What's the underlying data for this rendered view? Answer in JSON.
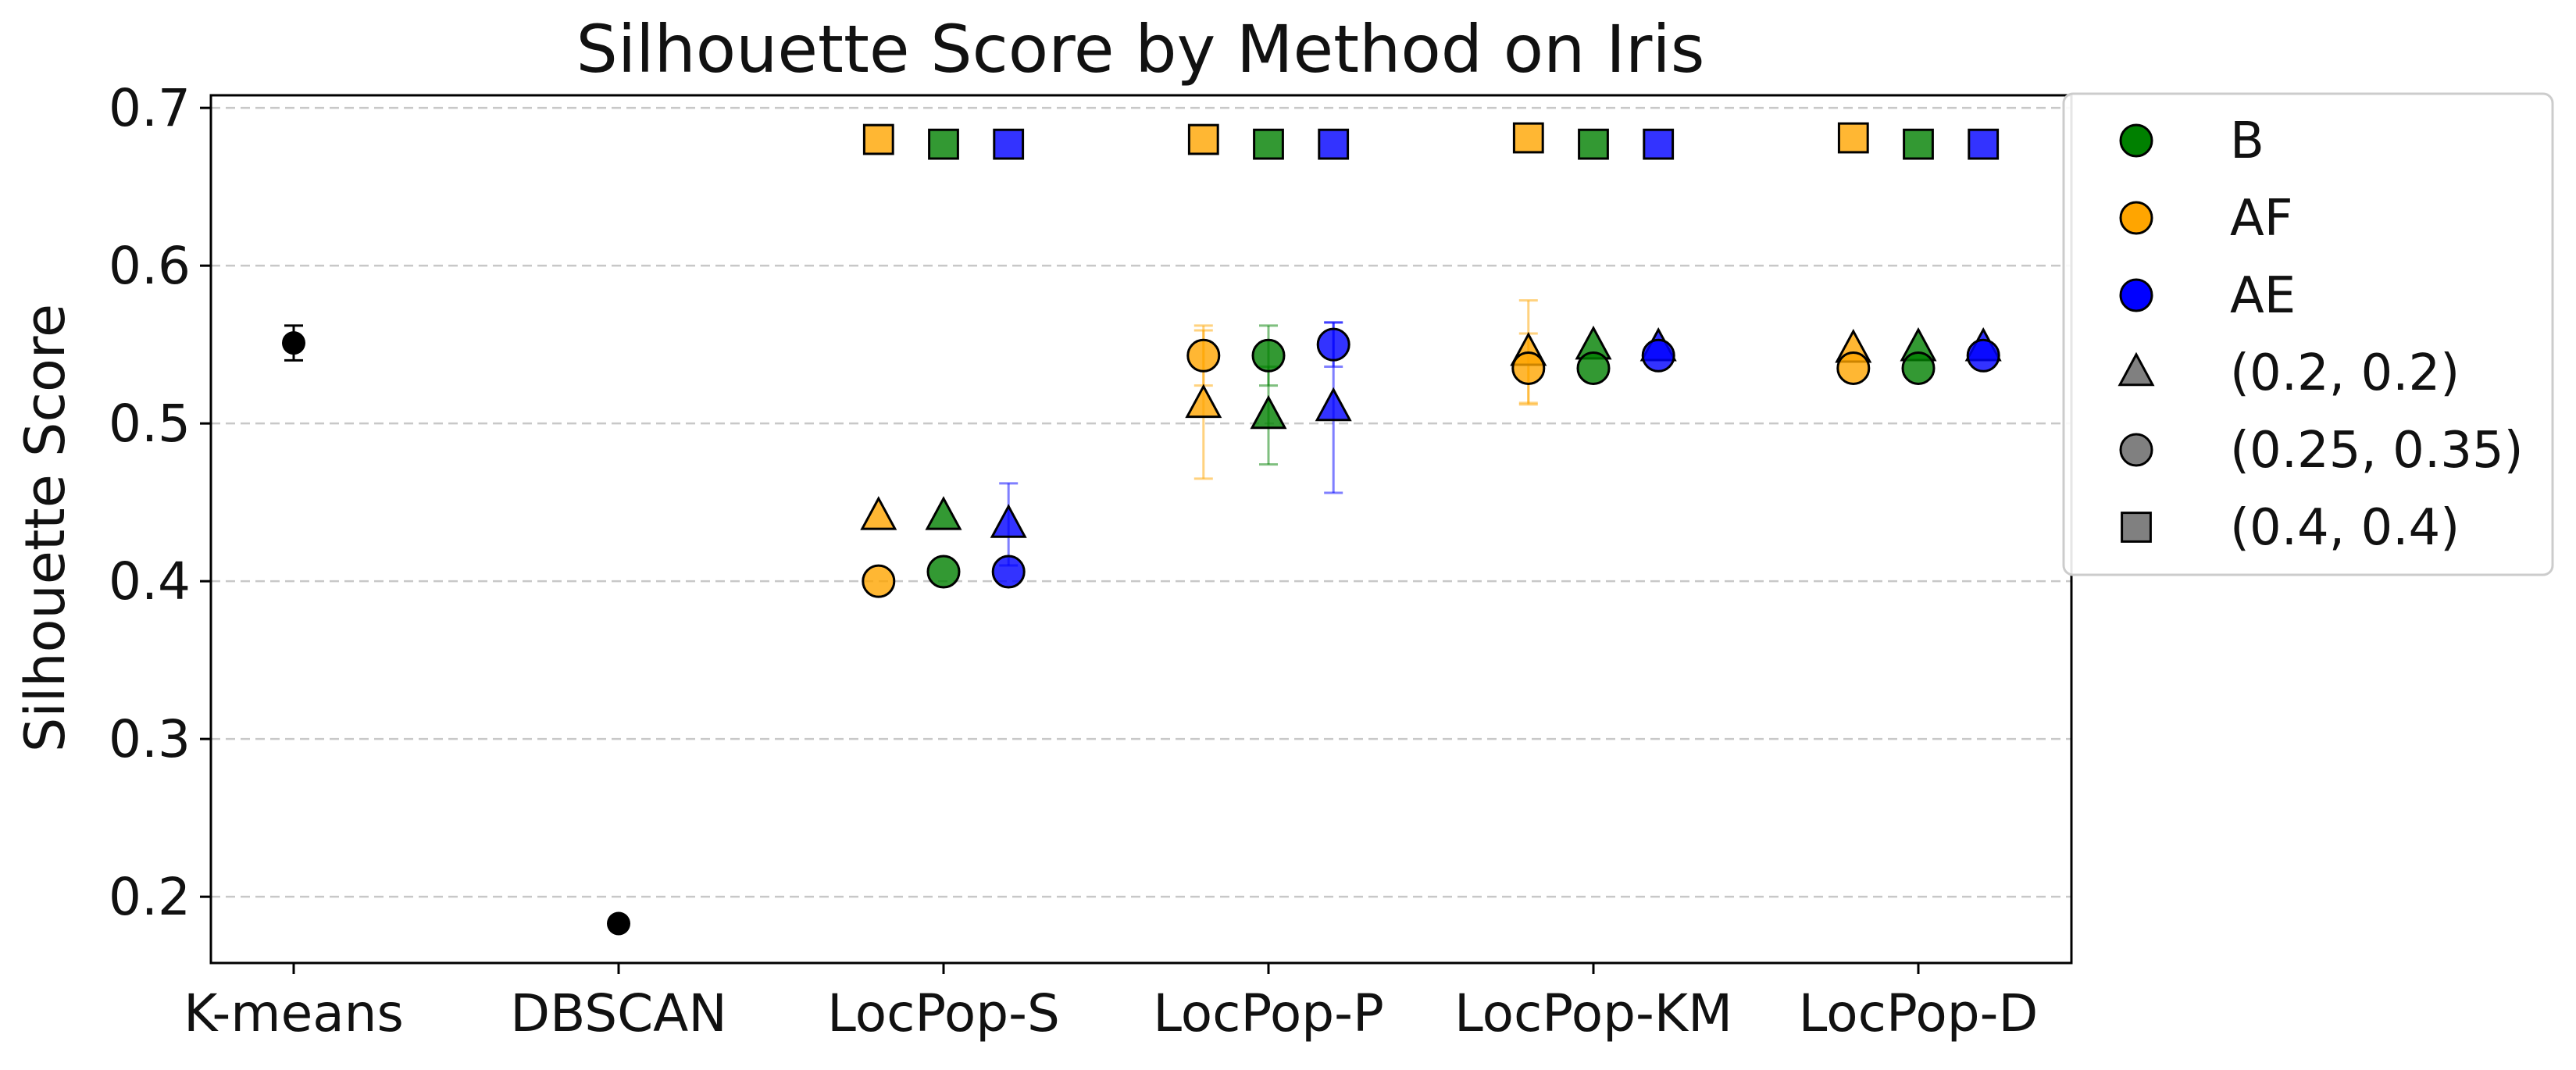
{
  "chart_data": {
    "type": "scatter",
    "title": "Silhouette Score by Method on Iris",
    "xlabel": "",
    "ylabel": "Silhouette Score",
    "categories": [
      "K-means",
      "DBSCAN",
      "LocPop-S",
      "LocPop-P",
      "LocPop-KM",
      "LocPop-D"
    ],
    "ylim": [
      0.158,
      0.708
    ],
    "yticks": [
      0.2,
      0.3,
      0.4,
      0.5,
      0.6,
      0.7
    ],
    "yticklabels": [
      "0.2",
      "0.3",
      "0.4",
      "0.5",
      "0.6",
      "0.7"
    ],
    "grid": true,
    "legend": {
      "placement": "outside-top-right",
      "entries": [
        {
          "label": "B",
          "marker": "circle",
          "color": "#008000"
        },
        {
          "label": "AF",
          "marker": "circle",
          "color": "#FFA500"
        },
        {
          "label": "AE",
          "marker": "circle",
          "color": "#0000FF"
        },
        {
          "label": "(0.2, 0.2)",
          "marker": "triangle",
          "color": "#808080"
        },
        {
          "label": "(0.25, 0.35)",
          "marker": "circle",
          "color": "#808080"
        },
        {
          "label": "(0.4, 0.4)",
          "marker": "square",
          "color": "#808080"
        }
      ]
    },
    "baselines": [
      {
        "category": "K-means",
        "value": 0.551,
        "error": 0.011
      },
      {
        "category": "DBSCAN",
        "value": 0.183,
        "error": 0
      }
    ],
    "series": [
      {
        "variant": "AF",
        "color": "#FFA500",
        "offset": -0.2,
        "param": "(0.2, 0.2)",
        "marker": "triangle",
        "values": [
          null,
          null,
          0.441,
          0.512,
          0.545,
          0.547
        ],
        "errors": [
          null,
          null,
          0,
          0.047,
          0.033,
          0
        ]
      },
      {
        "variant": "AF",
        "color": "#FFA500",
        "offset": -0.2,
        "param": "(0.25, 0.35)",
        "marker": "circle",
        "values": [
          null,
          null,
          0.4,
          0.543,
          0.535,
          0.535
        ],
        "errors": [
          null,
          null,
          0,
          0.019,
          0.022,
          0
        ]
      },
      {
        "variant": "AF",
        "color": "#FFA500",
        "offset": -0.2,
        "param": "(0.4, 0.4)",
        "marker": "square",
        "values": [
          null,
          null,
          0.68,
          0.68,
          0.681,
          0.681
        ],
        "errors": [
          null,
          null,
          0,
          0,
          0,
          0
        ]
      },
      {
        "variant": "B",
        "color": "#008000",
        "offset": 0.0,
        "param": "(0.2, 0.2)",
        "marker": "triangle",
        "values": [
          null,
          null,
          0.441,
          0.505,
          0.549,
          0.548
        ],
        "errors": [
          null,
          null,
          0,
          0.031,
          0,
          0
        ]
      },
      {
        "variant": "B",
        "color": "#008000",
        "offset": 0.0,
        "param": "(0.25, 0.35)",
        "marker": "circle",
        "values": [
          null,
          null,
          0.406,
          0.543,
          0.535,
          0.535
        ],
        "errors": [
          null,
          null,
          0,
          0.019,
          0,
          0
        ]
      },
      {
        "variant": "B",
        "color": "#008000",
        "offset": 0.0,
        "param": "(0.4, 0.4)",
        "marker": "square",
        "values": [
          null,
          null,
          0.677,
          0.677,
          0.677,
          0.677
        ],
        "errors": [
          null,
          null,
          0,
          0,
          0,
          0
        ]
      },
      {
        "variant": "AE",
        "color": "#0000FF",
        "offset": 0.2,
        "param": "(0.2, 0.2)",
        "marker": "triangle",
        "values": [
          null,
          null,
          0.436,
          0.51,
          0.548,
          0.548
        ],
        "errors": [
          null,
          null,
          0.026,
          0.054,
          0,
          0
        ]
      },
      {
        "variant": "AE",
        "color": "#0000FF",
        "offset": 0.2,
        "param": "(0.25, 0.35)",
        "marker": "circle",
        "values": [
          null,
          null,
          0.406,
          0.55,
          0.543,
          0.543
        ],
        "errors": [
          null,
          null,
          0,
          0.014,
          0,
          0
        ]
      },
      {
        "variant": "AE",
        "color": "#0000FF",
        "offset": 0.2,
        "param": "(0.4, 0.4)",
        "marker": "square",
        "values": [
          null,
          null,
          0.677,
          0.677,
          0.677,
          0.677
        ],
        "errors": [
          null,
          null,
          0,
          0,
          0,
          0
        ]
      }
    ]
  }
}
